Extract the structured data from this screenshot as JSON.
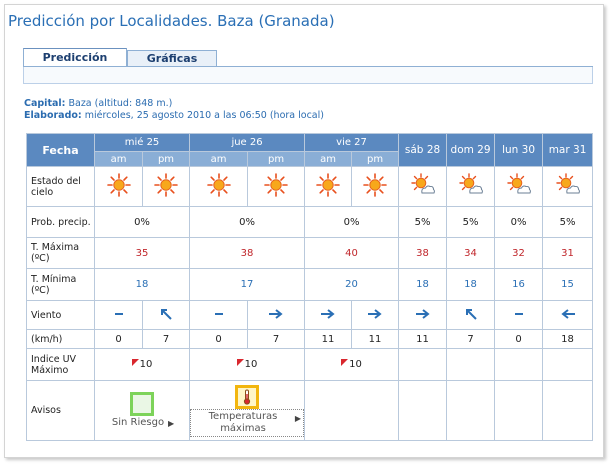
{
  "page": {
    "title": "Predicción por Localidades. Baza (Granada)"
  },
  "tabs": [
    {
      "label": "Predicción"
    },
    {
      "label": "Gráficas"
    }
  ],
  "info": {
    "capital_label": "Capital:",
    "capital_value": "Baza (altitud: 848 m.)",
    "elaborado_label": "Elaborado:",
    "elaborado_value": "miércoles, 25 agosto 2010 a las 06:50 (hora local)"
  },
  "table": {
    "fecha_label": "Fecha",
    "days_split": [
      {
        "day": "mié 25",
        "am": "am",
        "pm": "pm"
      },
      {
        "day": "jue 26",
        "am": "am",
        "pm": "pm"
      },
      {
        "day": "vie 27",
        "am": "am",
        "pm": "pm"
      }
    ],
    "days_single": [
      "sáb 28",
      "dom 29",
      "lun 30",
      "mar 31"
    ],
    "labels": {
      "sky": "Estado del cielo",
      "precip": "Prob. precip.",
      "tmax": "T. Máxima (ºC)",
      "tmin": "T. Mínima (ºC)",
      "wind": "Viento",
      "kmh": "(km/h)",
      "uv": "Indice UV Máximo",
      "avisos": "Avisos"
    },
    "sky_icons": [
      "sun-icon",
      "sun-icon",
      "sun-icon",
      "sun-icon",
      "sun-icon",
      "sun-icon",
      "sun-cloud-icon",
      "sun-cloud-icon",
      "sun-cloud-icon",
      "sun-cloud-icon"
    ],
    "precip": [
      "0%",
      "0%",
      "0%",
      "5%",
      "5%",
      "0%",
      "5%"
    ],
    "tmax": [
      "35",
      "38",
      "40",
      "38",
      "34",
      "32",
      "31"
    ],
    "tmin": [
      "18",
      "17",
      "20",
      "18",
      "18",
      "16",
      "15"
    ],
    "wind_icons": [
      "calm",
      "arrow-nw",
      "calm",
      "arrow-e",
      "arrow-e",
      "arrow-e",
      "arrow-e",
      "arrow-nw",
      "calm",
      "arrow-w"
    ],
    "wind_speed": [
      "0",
      "7",
      "0",
      "7",
      "11",
      "11",
      "11",
      "7",
      "0",
      "18"
    ],
    "uv": [
      "10",
      "10",
      "10"
    ],
    "avisos": [
      {
        "label": "Sin Riesgo",
        "icon": "green-square-icon"
      },
      {
        "label": "Temperaturas máximas",
        "icon": "thermometer-warning-icon"
      }
    ]
  },
  "colors": {
    "header_blue": "#5b89c0",
    "subheader_blue": "#8aaed6",
    "tmax_red": "#c0262b",
    "tmin_blue": "#2a6fb5"
  }
}
